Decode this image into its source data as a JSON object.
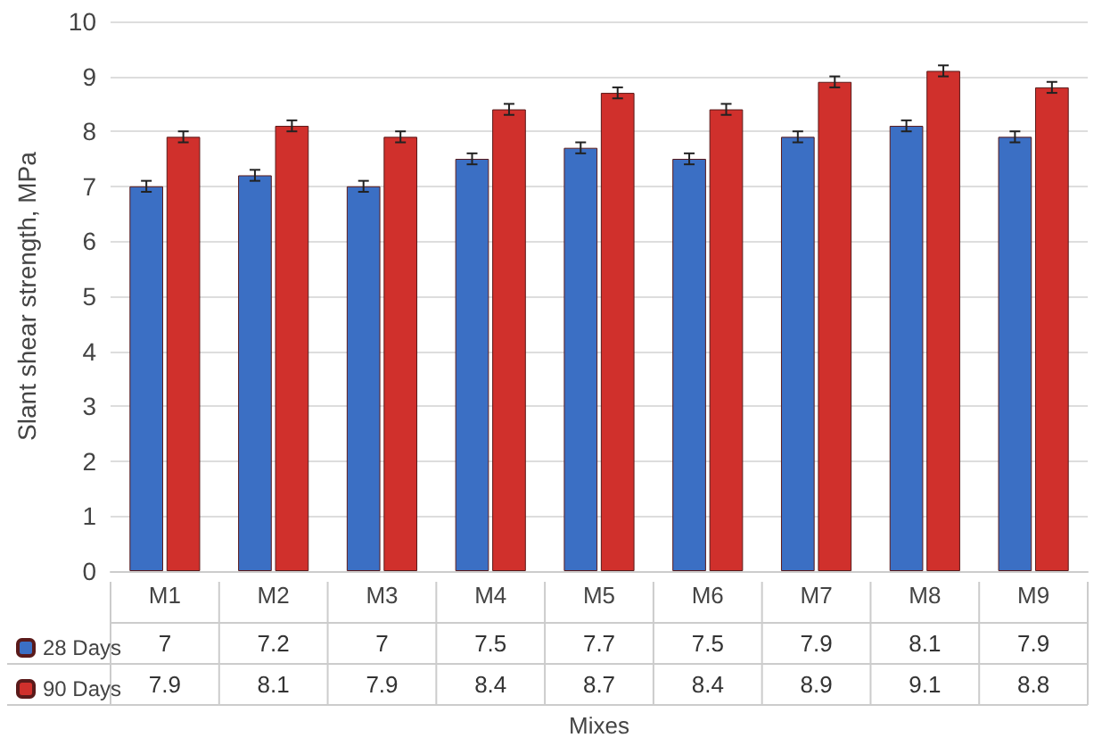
{
  "chart_data": {
    "type": "bar",
    "xlabel": "Mixes",
    "ylabel": "Slant shear strength, MPa",
    "categories": [
      "M1",
      "M2",
      "M3",
      "M4",
      "M5",
      "M6",
      "M7",
      "M8",
      "M9"
    ],
    "series": [
      {
        "name": "28 Days",
        "color": "#3b6fc4",
        "values": [
          7,
          7.2,
          7,
          7.5,
          7.7,
          7.5,
          7.9,
          8.1,
          7.9
        ],
        "errors": [
          0.1,
          0.1,
          0.1,
          0.1,
          0.1,
          0.1,
          0.1,
          0.1,
          0.1
        ]
      },
      {
        "name": "90 Days",
        "color": "#d0302c",
        "values": [
          7.9,
          8.1,
          7.9,
          8.4,
          8.7,
          8.4,
          8.9,
          9.1,
          8.8
        ],
        "errors": [
          0.1,
          0.1,
          0.1,
          0.1,
          0.1,
          0.1,
          0.1,
          0.1,
          0.1
        ]
      }
    ],
    "ylim": [
      0,
      10
    ],
    "yticks": [
      0,
      1,
      2,
      3,
      4,
      5,
      6,
      7,
      8,
      9,
      10
    ],
    "grid": "y",
    "legend": "bottom left",
    "data_labels": true
  }
}
